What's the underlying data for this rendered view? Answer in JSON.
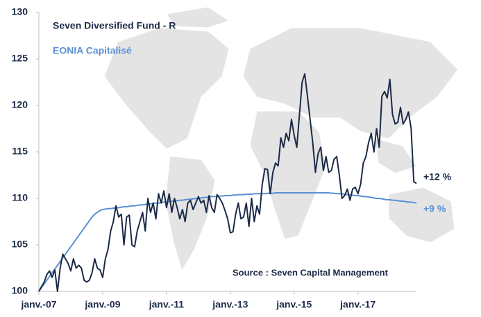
{
  "chart_data": {
    "type": "line",
    "categories": [
      "janv.-07",
      null,
      null,
      null,
      null,
      null,
      null,
      null,
      null,
      null,
      null,
      null,
      null,
      null,
      null,
      null,
      null,
      null,
      null,
      null,
      null,
      null,
      null,
      null,
      "janv.-09",
      null,
      null,
      null,
      null,
      null,
      null,
      null,
      null,
      null,
      null,
      null,
      null,
      null,
      null,
      null,
      null,
      null,
      null,
      null,
      null,
      null,
      null,
      null,
      "janv.-11",
      null,
      null,
      null,
      null,
      null,
      null,
      null,
      null,
      null,
      null,
      null,
      null,
      null,
      null,
      null,
      null,
      null,
      null,
      null,
      null,
      null,
      null,
      null,
      "janv.-13",
      null,
      null,
      null,
      null,
      null,
      null,
      null,
      null,
      null,
      null,
      null,
      null,
      null,
      null,
      null,
      null,
      null,
      null,
      null,
      null,
      null,
      null,
      null,
      "janv.-15",
      null,
      null,
      null,
      null,
      null,
      null,
      null,
      null,
      null,
      null,
      null,
      null,
      null,
      null,
      null,
      null,
      null,
      null,
      null,
      null,
      null,
      null,
      null,
      "janv.-17",
      null,
      null,
      null,
      null,
      null,
      null,
      null,
      null,
      null,
      null,
      null,
      null,
      null,
      null,
      null,
      null,
      null,
      null,
      null,
      null,
      null,
      null
    ],
    "series": [
      {
        "name": "Seven Diversified Fund - R",
        "color": "#1b2a47",
        "values": [
          100,
          100.5,
          101,
          101.8,
          102.2,
          101.5,
          102.3,
          100,
          102.5,
          104,
          103.5,
          103,
          102.2,
          103.5,
          102.5,
          102.8,
          102.5,
          101.2,
          101,
          101.2,
          102,
          103.5,
          102.5,
          102.3,
          101.5,
          103.5,
          104.5,
          106.5,
          107.5,
          109.2,
          108,
          108.3,
          105,
          108,
          108.2,
          105,
          104.8,
          106.5,
          107.5,
          108.5,
          106.5,
          110,
          108.5,
          109.5,
          107.8,
          110.5,
          109.5,
          110.8,
          109,
          110.5,
          108.5,
          110,
          109,
          107.8,
          108.8,
          107.5,
          109.5,
          109.8,
          108.8,
          109.5,
          110.2,
          109.5,
          109.8,
          108.5,
          110.3,
          109,
          108.5,
          110.4,
          110,
          109.5,
          108.7,
          107.8,
          106.3,
          106.4,
          108.3,
          109.5,
          107.8,
          108,
          109.5,
          107,
          110,
          107.5,
          109.2,
          108.3,
          111.5,
          113.2,
          113.1,
          110.5,
          112.8,
          113.8,
          113.5,
          116.5,
          115.5,
          117,
          116.2,
          118.5,
          116.8,
          115.5,
          119,
          122.5,
          123.4,
          121,
          118.5,
          116,
          112.8,
          114.8,
          115.5,
          113,
          114.5,
          112.8,
          113,
          114.2,
          114.5,
          112.5,
          110,
          110.3,
          111,
          109.8,
          111,
          111.2,
          110.5,
          111.5,
          113.8,
          114.5,
          116,
          117,
          115,
          117.5,
          115.5,
          121,
          121.5,
          120.8,
          122.8,
          119,
          118,
          118.2,
          119.8,
          118,
          118.5,
          119.3,
          117.5,
          111.8,
          111.6
        ]
      },
      {
        "name": "EONIA Capitalisé",
        "color": "#5b8fd4",
        "values": [
          100,
          100.4,
          100.8,
          101.2,
          101.6,
          102.0,
          102.4,
          102.8,
          103.2,
          103.6,
          104.0,
          104.4,
          104.8,
          105.2,
          105.6,
          106.0,
          106.4,
          106.8,
          107.2,
          107.6,
          108.0,
          108.3,
          108.5,
          108.7,
          108.8,
          108.85,
          108.9,
          108.9,
          108.95,
          109,
          109,
          109.05,
          109.1,
          109.1,
          109.15,
          109.2,
          109.2,
          109.25,
          109.3,
          109.3,
          109.35,
          109.4,
          109.4,
          109.45,
          109.5,
          109.5,
          109.55,
          109.6,
          109.6,
          109.65,
          109.7,
          109.7,
          109.75,
          109.8,
          109.8,
          109.85,
          109.9,
          109.9,
          109.95,
          110,
          110,
          110.05,
          110.1,
          110.1,
          110.15,
          110.2,
          110.2,
          110.2,
          110.25,
          110.25,
          110.3,
          110.3,
          110.3,
          110.35,
          110.35,
          110.4,
          110.4,
          110.4,
          110.45,
          110.45,
          110.45,
          110.5,
          110.5,
          110.5,
          110.5,
          110.5,
          110.55,
          110.55,
          110.55,
          110.6,
          110.6,
          110.6,
          110.6,
          110.6,
          110.6,
          110.6,
          110.6,
          110.6,
          110.6,
          110.6,
          110.6,
          110.6,
          110.6,
          110.6,
          110.6,
          110.6,
          110.6,
          110.6,
          110.6,
          110.6,
          110.55,
          110.55,
          110.5,
          110.5,
          110.5,
          110.45,
          110.4,
          110.4,
          110.35,
          110.3,
          110.3,
          110.25,
          110.2,
          110.2,
          110.15,
          110.1,
          110.05,
          110,
          110,
          109.95,
          109.9,
          109.85,
          109.85,
          109.8,
          109.8,
          109.75,
          109.7,
          109.7,
          109.65,
          109.6,
          109.6,
          109.55,
          109.5
        ]
      }
    ],
    "annotations": [
      "+12 %",
      "+9 %",
      "Source : Seven Capital Management"
    ],
    "ylim": [
      100,
      130
    ],
    "yticks": [
      100,
      105,
      110,
      115,
      120,
      125,
      130
    ],
    "grid": false
  }
}
